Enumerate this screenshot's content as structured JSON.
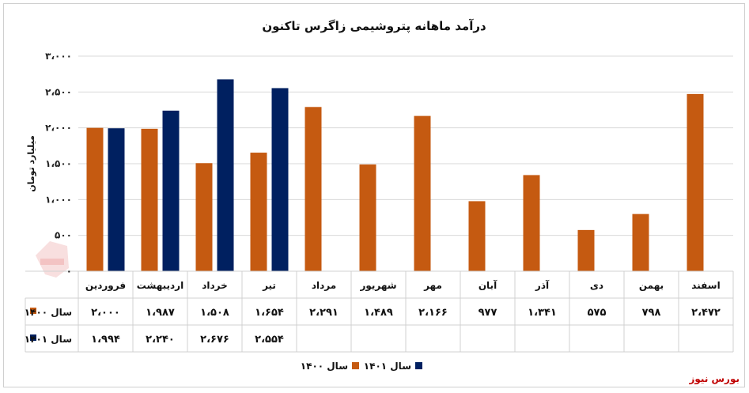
{
  "source_label": "بورس نیوز",
  "colors": {
    "series_1400": "#C55A11",
    "series_1401": "#002060",
    "source": "#c00000",
    "gridline": "#d9d9d9"
  },
  "chart_data": {
    "type": "bar",
    "title": "درآمد ماهانه پتروشیمی زاگرس تاکنون",
    "ylabel": "میلیارد تومان",
    "xlabel": "",
    "ylim": [
      0,
      3000
    ],
    "yticks": [
      0,
      500,
      1000,
      1500,
      2000,
      2500,
      3000
    ],
    "ytick_labels": [
      "۰",
      "۵۰۰",
      "۱،۰۰۰",
      "۱،۵۰۰",
      "۲،۰۰۰",
      "۲،۵۰۰",
      "۳،۰۰۰"
    ],
    "grid": true,
    "legend_position": "bottom",
    "categories": [
      "فروردین",
      "اردیبهشت",
      "خرداد",
      "تیر",
      "مرداد",
      "شهریور",
      "مهر",
      "آبان",
      "آذر",
      "دی",
      "بهمن",
      "اسفند"
    ],
    "series": [
      {
        "name": "سال ۱۴۰۰",
        "color": "#C55A11",
        "values": [
          2000,
          1987,
          1508,
          1654,
          2291,
          1489,
          2166,
          977,
          1341,
          575,
          798,
          2472
        ],
        "labels": [
          "۲،۰۰۰",
          "۱،۹۸۷",
          "۱،۵۰۸",
          "۱،۶۵۴",
          "۲،۲۹۱",
          "۱،۴۸۹",
          "۲،۱۶۶",
          "۹۷۷",
          "۱،۳۴۱",
          "۵۷۵",
          "۷۹۸",
          "۲،۴۷۲"
        ]
      },
      {
        "name": "سال ۱۴۰۱",
        "color": "#002060",
        "values": [
          1994,
          2240,
          2676,
          2554,
          null,
          null,
          null,
          null,
          null,
          null,
          null,
          null
        ],
        "labels": [
          "۱،۹۹۴",
          "۲،۲۴۰",
          "۲،۶۷۶",
          "۲،۵۵۴",
          "",
          "",
          "",
          "",
          "",
          "",
          "",
          ""
        ]
      }
    ]
  }
}
